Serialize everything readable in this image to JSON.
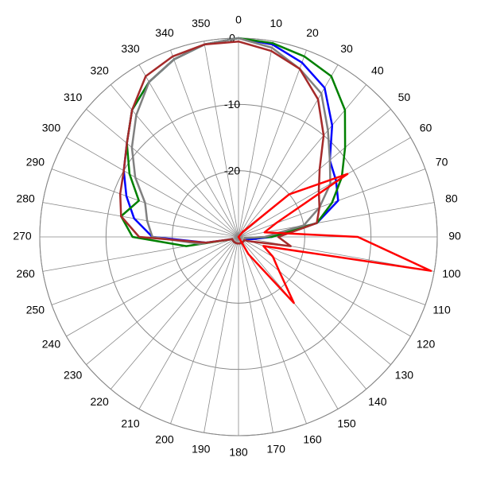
{
  "chart_data": {
    "type": "polar",
    "theta": [
      0,
      10,
      20,
      30,
      40,
      50,
      60,
      70,
      80,
      90,
      100,
      110,
      120,
      130,
      140,
      150,
      160,
      170,
      180,
      190,
      200,
      210,
      220,
      230,
      240,
      250,
      260,
      270,
      280,
      290,
      300,
      310,
      320,
      330,
      340,
      350
    ],
    "rlim": [
      -30,
      0
    ],
    "rticks": [
      -20,
      -10,
      0
    ],
    "grid": true,
    "series": [
      {
        "color": "#0000ff",
        "values": [
          0,
          -0.5,
          -2,
          -4,
          -8,
          -12,
          -13,
          -14,
          -18,
          -25,
          -28,
          -29,
          -29,
          -29,
          -29,
          -29,
          -29,
          -29,
          -29,
          -29,
          -29,
          -29,
          -29,
          -29,
          -29,
          -29,
          -25,
          -17,
          -14,
          -12,
          -10,
          -8,
          -5,
          -3,
          -1.5,
          -0.5
        ]
      },
      {
        "color": "#008000",
        "values": [
          0,
          -0.3,
          -1,
          -2,
          -5,
          -9,
          -12,
          -15,
          -18,
          -25,
          -29,
          -29,
          -29,
          -29,
          -29,
          -29,
          -29,
          -29,
          -29,
          -29,
          -29,
          -29,
          -29,
          -29,
          -29,
          -29,
          -22,
          -14,
          -12,
          -14,
          -11,
          -8,
          -5,
          -3,
          -1.5,
          -0.5
        ]
      },
      {
        "color": "#808080",
        "values": [
          0,
          -1,
          -3,
          -5,
          -9,
          -12,
          -14,
          -17,
          -20,
          -26,
          -29,
          -29,
          -29,
          -29,
          -29,
          -29,
          -29,
          -29,
          -29,
          -29,
          -29,
          -29,
          -29,
          -29,
          -29,
          -29,
          -24,
          -17,
          -16,
          -15,
          -12,
          -9,
          -6,
          -3,
          -1.5,
          -0.5
        ]
      },
      {
        "color": "#a52a2a",
        "values": [
          -0.5,
          -1.5,
          -3,
          -6,
          -10,
          -14,
          -16,
          -17,
          -18,
          -24,
          -22,
          -28,
          -29,
          -29,
          -29,
          -29,
          -29,
          -29,
          -29,
          -29,
          -29,
          -29,
          -29,
          -29,
          -29,
          -29,
          -25,
          -15,
          -12,
          -11,
          -10,
          -8,
          -5,
          -2,
          -1,
          -0.5
        ]
      },
      {
        "color": "#ff0000",
        "values": [
          -30,
          -30,
          -30,
          -30,
          -29,
          -20,
          -11,
          -24,
          -26,
          -12,
          -0.5,
          -26,
          -24,
          -22,
          -17,
          -27,
          -30,
          -30,
          -30,
          -30,
          -30,
          -30,
          -30,
          -30,
          -30,
          -30,
          -30,
          -30,
          -30,
          -30,
          -30,
          -30,
          -30,
          -30,
          -30,
          -30
        ]
      }
    ]
  }
}
